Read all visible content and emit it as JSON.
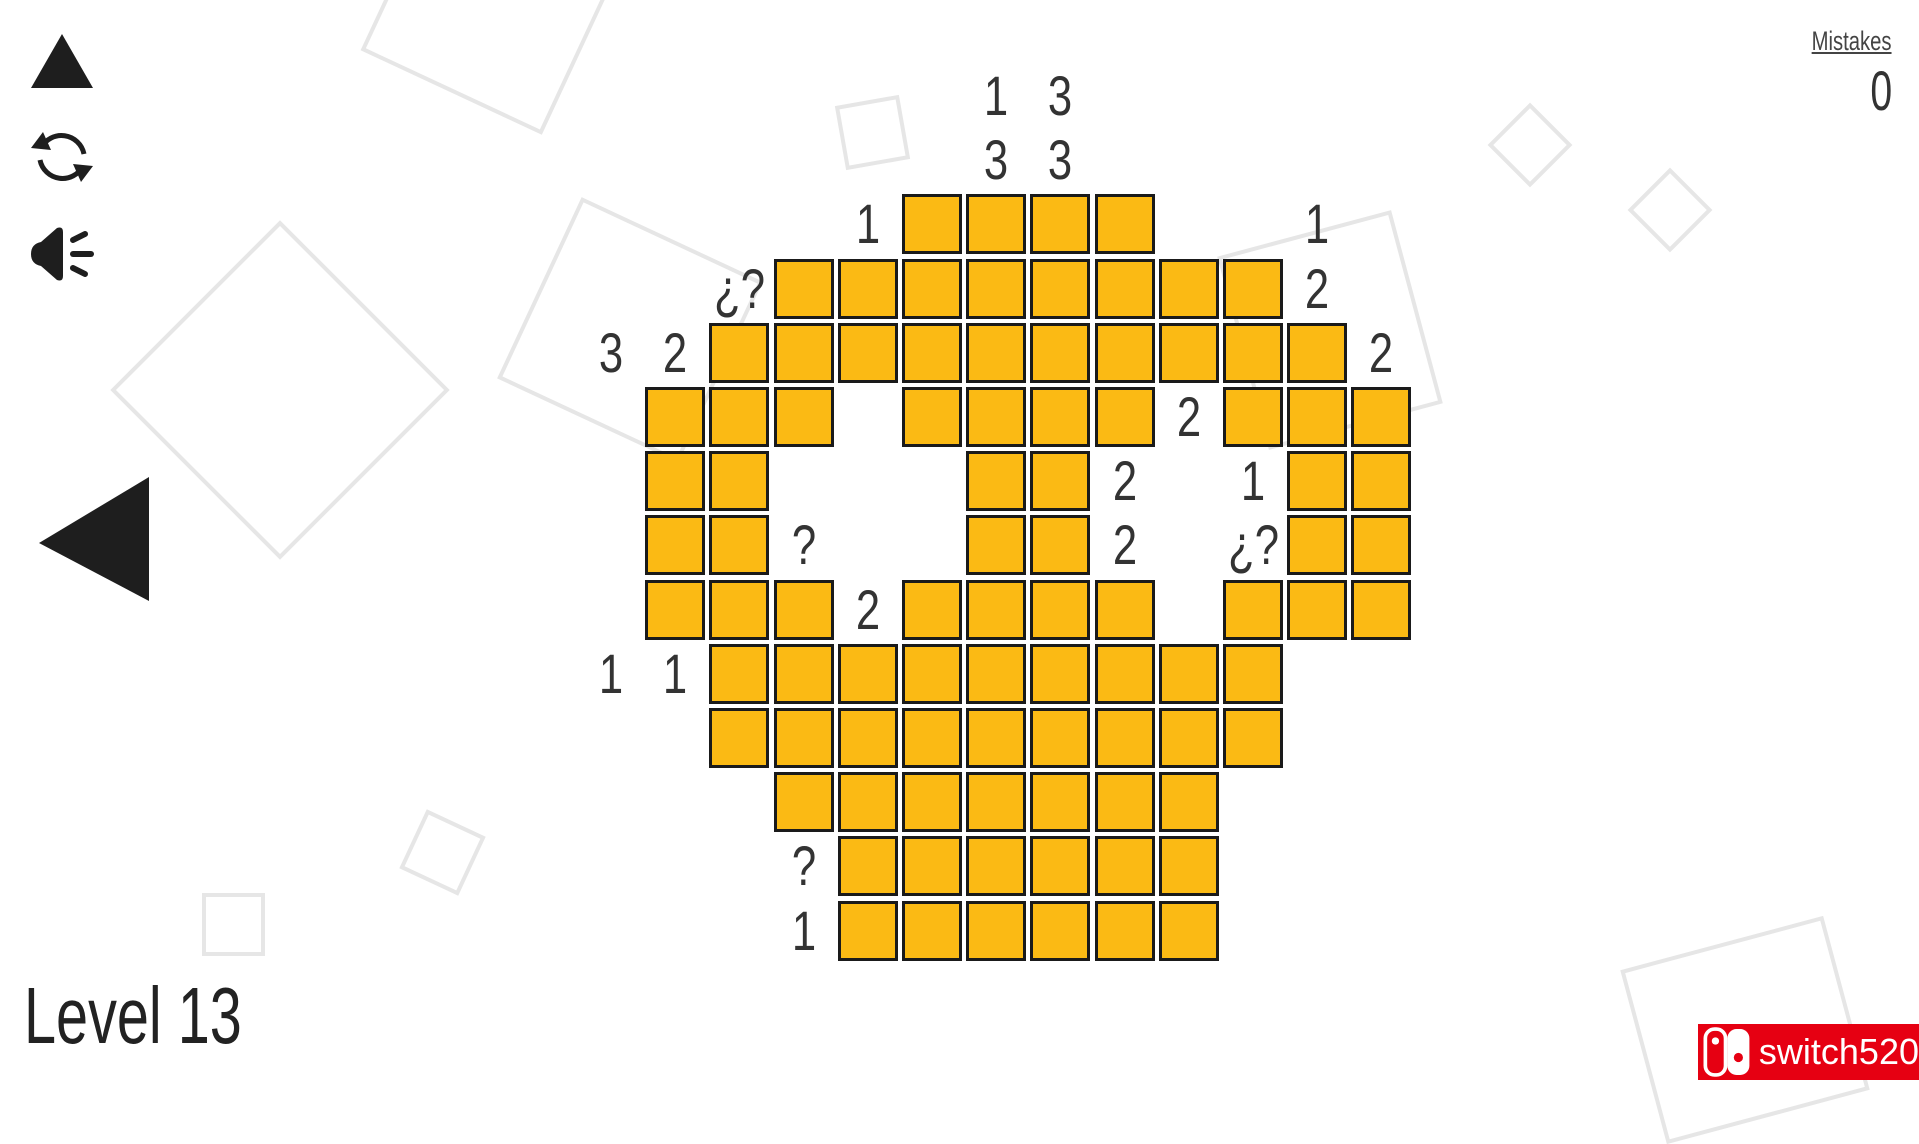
{
  "level": {
    "label": "Level 13"
  },
  "mistakes": {
    "label": "Mistakes",
    "count": "0"
  },
  "logo": {
    "text": "switch520"
  },
  "colors": {
    "cell_fill": "#fbba14",
    "cell_border": "#1a1a1a",
    "logo_red": "#e60012"
  },
  "toolbar": {
    "icons": [
      "triangle-up-icon",
      "refresh-icon",
      "sound-icon"
    ],
    "back_icon": "triangle-left-icon"
  },
  "puzzle": {
    "legend": {
      "filled": "#",
      "empty": ""
    },
    "rows": [
      [
        "",
        "",
        "",
        "",
        "",
        "",
        "1",
        "3",
        "",
        "",
        "",
        "",
        ""
      ],
      [
        "",
        "",
        "",
        "",
        "",
        "",
        "3",
        "3",
        "",
        "",
        "",
        "",
        ""
      ],
      [
        "",
        "",
        "",
        "",
        "1",
        "#",
        "#",
        "#",
        "#",
        "",
        "",
        "1",
        ""
      ],
      [
        "",
        "",
        "¿?",
        "#",
        "#",
        "#",
        "#",
        "#",
        "#",
        "#",
        "#",
        "2",
        ""
      ],
      [
        "3",
        "2",
        "#",
        "#",
        "#",
        "#",
        "#",
        "#",
        "#",
        "#",
        "#",
        "#",
        "2"
      ],
      [
        "",
        "#",
        "#",
        "#",
        "",
        "#",
        "#",
        "#",
        "#",
        "2",
        "#",
        "#",
        "#"
      ],
      [
        "",
        "#",
        "#",
        "",
        "",
        "",
        "#",
        "#",
        "2",
        "",
        "1",
        "#",
        "#"
      ],
      [
        "",
        "#",
        "#",
        "?",
        "",
        "",
        "#",
        "#",
        "2",
        "",
        "¿?",
        "#",
        "#"
      ],
      [
        "",
        "#",
        "#",
        "#",
        "2",
        "#",
        "#",
        "#",
        "#",
        "",
        "#",
        "#",
        "#"
      ],
      [
        "1",
        "1",
        "#",
        "#",
        "#",
        "#",
        "#",
        "#",
        "#",
        "#",
        "#",
        "",
        ""
      ],
      [
        "",
        "",
        "#",
        "#",
        "#",
        "#",
        "#",
        "#",
        "#",
        "#",
        "#",
        "",
        ""
      ],
      [
        "",
        "",
        "",
        "#",
        "#",
        "#",
        "#",
        "#",
        "#",
        "#",
        "",
        "",
        ""
      ],
      [
        "",
        "",
        "",
        "?",
        "#",
        "#",
        "#",
        "#",
        "#",
        "#",
        "",
        "",
        ""
      ],
      [
        "",
        "",
        "",
        "1",
        "#",
        "#",
        "#",
        "#",
        "#",
        "#",
        "",
        "",
        ""
      ]
    ]
  }
}
